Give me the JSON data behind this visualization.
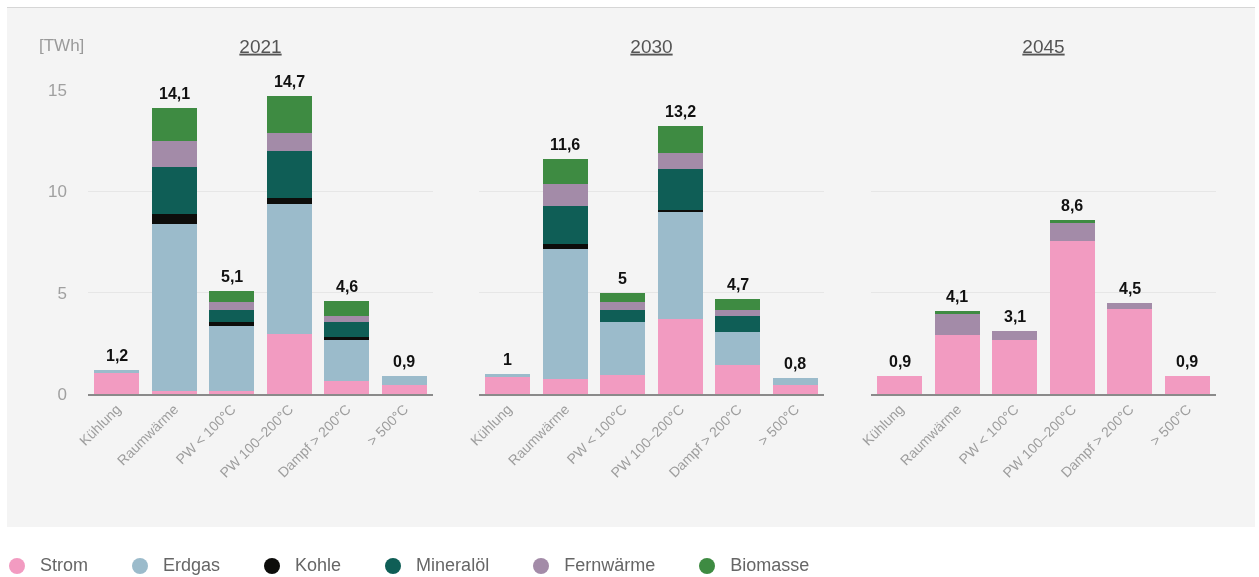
{
  "chart_data": [
    {
      "type": "bar",
      "title": "2021",
      "ylabel": "[TWh]",
      "categories": [
        "Kühlung",
        "Raumwärme",
        "PW < 100°C",
        "PW 100–200°C",
        "Dampf > 200°C",
        "> 500°C"
      ],
      "stacked": true,
      "series": [
        {
          "name": "Strom",
          "color": "#f29bc1",
          "values": [
            1.05,
            0.16,
            0.16,
            2.97,
            0.64,
            0.46
          ]
        },
        {
          "name": "Erdgas",
          "color": "#9bbbcb",
          "values": [
            0.15,
            8.23,
            3.21,
            6.41,
            2.04,
            0.44
          ]
        },
        {
          "name": "Kohle",
          "color": "#0d0d0b",
          "values": [
            0,
            0.49,
            0.19,
            0.29,
            0.11,
            0
          ]
        },
        {
          "name": "Mineralöl",
          "color": "#0f5e56",
          "values": [
            0,
            2.32,
            0.59,
            2.32,
            0.77,
            0
          ]
        },
        {
          "name": "Fernwärme",
          "color": "#a38ba8",
          "values": [
            0,
            1.28,
            0.4,
            0.88,
            0.3,
            0
          ]
        },
        {
          "name": "Biomasse",
          "color": "#3e8b42",
          "values": [
            0,
            1.62,
            0.55,
            1.83,
            0.74,
            0
          ]
        }
      ],
      "totals": [
        "1,2",
        "14,1",
        "5,1",
        "14,7",
        "4,6",
        "0,9"
      ],
      "ylim": [
        0,
        15
      ],
      "yticks": [
        0,
        5,
        10,
        15
      ],
      "grid": "y",
      "legend": "bottom"
    },
    {
      "type": "bar",
      "title": "2030",
      "categories": [
        "Kühlung",
        "Raumwärme",
        "PW < 100°C",
        "PW 100–200°C",
        "Dampf > 200°C",
        "> 500°C"
      ],
      "stacked": true,
      "series": [
        {
          "name": "Strom",
          "color": "#f29bc1",
          "values": [
            0.85,
            0.76,
            0.92,
            3.68,
            1.41,
            0.46
          ]
        },
        {
          "name": "Erdgas",
          "color": "#9bbbcb",
          "values": [
            0.15,
            6.4,
            2.64,
            5.3,
            1.66,
            0.34
          ]
        },
        {
          "name": "Kohle",
          "color": "#0d0d0b",
          "values": [
            0,
            0.25,
            0,
            0.1,
            0,
            0
          ]
        },
        {
          "name": "Mineralöl",
          "color": "#0f5e56",
          "values": [
            0,
            1.87,
            0.59,
            2.02,
            0.79,
            0
          ]
        },
        {
          "name": "Fernwärme",
          "color": "#a38ba8",
          "values": [
            0,
            1.08,
            0.4,
            0.79,
            0.29,
            0
          ]
        },
        {
          "name": "Biomasse",
          "color": "#3e8b42",
          "values": [
            0,
            1.24,
            0.45,
            1.31,
            0.55,
            0
          ]
        }
      ],
      "totals": [
        "1",
        "11,6",
        "5",
        "13,2",
        "4,7",
        "0,8"
      ],
      "ylim": [
        0,
        15
      ],
      "yticks": [
        0,
        5,
        10,
        15
      ],
      "grid": "y",
      "tick_labels": "x"
    },
    {
      "type": "bar",
      "title": "2045",
      "categories": [
        "Kühlung",
        "Raumwärme",
        "PW < 100°C",
        "PW 100–200°C",
        "Dampf > 200°C",
        "> 500°C"
      ],
      "stacked": true,
      "series": [
        {
          "name": "Strom",
          "color": "#f29bc1",
          "values": [
            0.9,
            2.89,
            2.67,
            7.54,
            4.17,
            0.9
          ]
        },
        {
          "name": "Erdgas",
          "color": "#9bbbcb",
          "values": [
            0,
            0,
            0,
            0,
            0,
            0
          ]
        },
        {
          "name": "Kohle",
          "color": "#0d0d0b",
          "values": [
            0,
            0,
            0,
            0,
            0,
            0
          ]
        },
        {
          "name": "Mineralöl",
          "color": "#0f5e56",
          "values": [
            0,
            0,
            0,
            0,
            0,
            0
          ]
        },
        {
          "name": "Fernwärme",
          "color": "#a38ba8",
          "values": [
            0,
            1.08,
            0.43,
            0.92,
            0.33,
            0
          ]
        },
        {
          "name": "Biomasse",
          "color": "#3e8b42",
          "values": [
            0,
            0.13,
            0,
            0.14,
            0,
            0
          ]
        }
      ],
      "totals": [
        "0,9",
        "4,1",
        "3,1",
        "8,6",
        "4,5",
        "0,9"
      ],
      "ylim": [
        0,
        15
      ],
      "yticks": [
        0,
        5,
        10,
        15
      ],
      "grid": "y",
      "tick_labels": "x"
    }
  ]
}
